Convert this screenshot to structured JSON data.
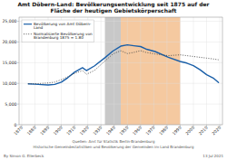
{
  "chart_data": {
    "type": "line",
    "title": "Amt Döbern-Land: Bevölkerungsentwicklung seit 1875 auf der\nFläche der heutigen Gebietskörperschaft",
    "x": [
      1875,
      1880,
      1885,
      1890,
      1895,
      1900,
      1905,
      1910,
      1916,
      1919,
      1925,
      1933,
      1939,
      1945,
      1950,
      1955,
      1960,
      1964,
      1971,
      1981,
      1990,
      1995,
      2000,
      2005,
      2010,
      2015,
      2019
    ],
    "series": [
      {
        "name": "Bevölkerung von Amt Döbern-\nLand",
        "color": "#1a5fa8",
        "line_style": "solid",
        "values": [
          9900,
          9800,
          9700,
          9600,
          9750,
          10300,
          11400,
          12700,
          13800,
          13100,
          14200,
          16200,
          17800,
          19000,
          19300,
          19100,
          18900,
          18300,
          17700,
          16300,
          15300,
          14900,
          14300,
          13300,
          12100,
          11300,
          10200
        ]
      },
      {
        "name": "Normalisierte Bevölkerung von\nBrandenburg 1875 = 1.80",
        "color": "#444444",
        "line_style": "dotted",
        "values": [
          9900,
          9900,
          10000,
          10100,
          10300,
          10900,
          11600,
          12400,
          13100,
          12200,
          13100,
          15400,
          17100,
          17900,
          17200,
          17500,
          17900,
          17500,
          17100,
          16700,
          16900,
          16700,
          16500,
          16300,
          16100,
          15900,
          15700
        ]
      }
    ],
    "xlim": [
      1868,
      2022
    ],
    "xticks": [
      1870,
      1880,
      1890,
      1900,
      1910,
      1920,
      1930,
      1940,
      1950,
      1960,
      1970,
      1980,
      1990,
      2000,
      2010,
      2020
    ],
    "ylim": [
      0,
      26000
    ],
    "yticks": [
      0,
      {
        "value": 5000,
        "label": "5,000"
      },
      {
        "value": 10000,
        "label": "10,000"
      },
      {
        "value": 15000,
        "label": "15,000"
      },
      {
        "value": 20000,
        "label": "20,000"
      },
      {
        "value": 25000,
        "label": "25,000"
      }
    ],
    "grid": true,
    "legend": "upper left",
    "shaded_ranges": [
      {
        "from": 1933,
        "to": 1945,
        "color": "#c8c8c8"
      },
      {
        "from": 1945,
        "to": 1990,
        "color": "#f5c9a0"
      }
    ],
    "annotations": [
      "Quellen: Amt für Statistik Berlin-Brandenburg",
      "Historische Gemeindestatistiken und Bevölkerung der Gemeinden im Land Brandenburg",
      "By Simon G. Ellerbeck",
      "13 Jul 2021"
    ]
  }
}
